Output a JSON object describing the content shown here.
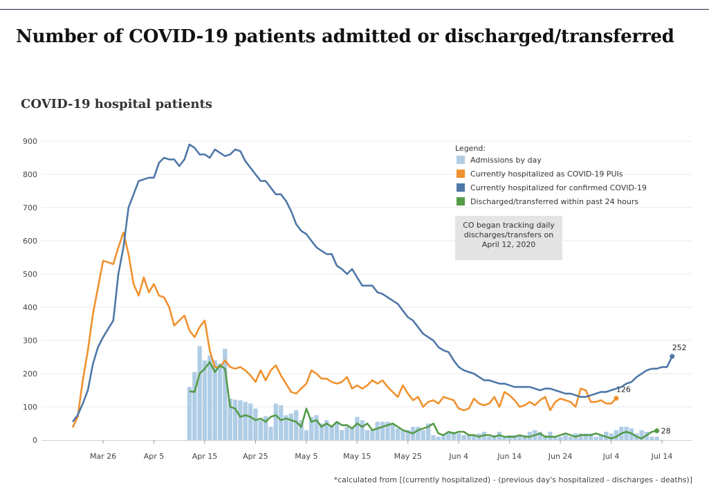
{
  "page": {
    "title": "Number of COVID-19 patients admitted or discharged/transferred"
  },
  "chart_data": {
    "type": "bar+line",
    "title": "COVID-19 hospital patients",
    "xlabel": "",
    "ylabel": "",
    "x_start": "2020-03-20",
    "x_end": "2020-07-14",
    "x_ticks": [
      {
        "date": "2020-03-26",
        "label": "Mar 26"
      },
      {
        "date": "2020-04-05",
        "label": "Apr 5"
      },
      {
        "date": "2020-04-15",
        "label": "Apr 15"
      },
      {
        "date": "2020-04-25",
        "label": "Apr 25"
      },
      {
        "date": "2020-05-05",
        "label": "May 5"
      },
      {
        "date": "2020-05-15",
        "label": "May 15"
      },
      {
        "date": "2020-05-25",
        "label": "May 25"
      },
      {
        "date": "2020-06-04",
        "label": "Jun 4"
      },
      {
        "date": "2020-06-14",
        "label": "Jun 14"
      },
      {
        "date": "2020-06-24",
        "label": "Jun 24"
      },
      {
        "date": "2020-07-04",
        "label": "Jul 4"
      },
      {
        "date": "2020-07-14",
        "label": "Jul 14"
      }
    ],
    "ylim": [
      0,
      900
    ],
    "y_ticks": [
      0,
      100,
      200,
      300,
      400,
      500,
      600,
      700,
      800,
      900
    ],
    "grid": true,
    "legend": {
      "title": "Legend:",
      "placement": "top-right",
      "items": [
        {
          "label": "Admissions by day",
          "color": "#b0cde6",
          "kind": "bar"
        },
        {
          "label": "Currently hospitalized as COVID-19 PUIs",
          "color": "#f0912d",
          "kind": "line"
        },
        {
          "label": "Currently hospitalized for confirmed COVID-19",
          "color": "#4e77a6",
          "kind": "line"
        },
        {
          "label": "Discharged/transferred within past 24 hours",
          "color": "#559b48",
          "kind": "line"
        }
      ]
    },
    "annotation": "CO began tracking daily discharges/transfers on April 12, 2020",
    "series": [
      {
        "name": "Admissions by day",
        "kind": "bar",
        "color": "#b0cde6",
        "start": "2020-04-12",
        "values": [
          160,
          205,
          283,
          240,
          255,
          240,
          230,
          275,
          125,
          122,
          120,
          115,
          110,
          95,
          60,
          72,
          40,
          110,
          105,
          75,
          80,
          90,
          60,
          30,
          70,
          75,
          50,
          60,
          45,
          55,
          30,
          40,
          35,
          70,
          60,
          30,
          30,
          55,
          55,
          55,
          50,
          35,
          30,
          30,
          40,
          40,
          30,
          50,
          15,
          10,
          15,
          25,
          25,
          20,
          15,
          15,
          15,
          20,
          25,
          10,
          15,
          25,
          10,
          15,
          15,
          15,
          15,
          25,
          30,
          25,
          15,
          25,
          10,
          10,
          15,
          10,
          20,
          20,
          20,
          20,
          10,
          15,
          25,
          20,
          30,
          40,
          40,
          35,
          20,
          30,
          25,
          10,
          10
        ]
      },
      {
        "name": "Currently hospitalized as COVID-19 PUIs",
        "kind": "line",
        "color": "#f0912d",
        "start": "2020-03-20",
        "end_label": "126",
        "values": [
          38,
          70,
          180,
          270,
          380,
          460,
          540,
          535,
          530,
          580,
          625,
          560,
          470,
          435,
          490,
          445,
          470,
          435,
          430,
          400,
          345,
          360,
          375,
          330,
          310,
          340,
          360,
          270,
          220,
          220,
          240,
          220,
          215,
          220,
          210,
          195,
          175,
          210,
          180,
          210,
          225,
          195,
          170,
          145,
          140,
          155,
          170,
          210,
          200,
          185,
          185,
          175,
          170,
          175,
          190,
          155,
          165,
          155,
          165,
          180,
          170,
          180,
          160,
          145,
          130,
          165,
          140,
          120,
          130,
          100,
          115,
          120,
          110,
          130,
          125,
          120,
          95,
          90,
          95,
          125,
          110,
          105,
          110,
          130,
          100,
          145,
          135,
          120,
          100,
          105,
          115,
          105,
          120,
          130,
          90,
          115,
          125,
          120,
          115,
          100,
          155,
          150,
          115,
          115,
          120,
          110,
          110,
          126
        ]
      },
      {
        "name": "Currently hospitalized for confirmed COVID-19",
        "kind": "line",
        "color": "#4e77a6",
        "start": "2020-03-20",
        "end_label": "252",
        "values": [
          55,
          75,
          110,
          150,
          230,
          280,
          310,
          335,
          360,
          500,
          580,
          700,
          740,
          780,
          785,
          790,
          790,
          835,
          850,
          845,
          845,
          825,
          845,
          890,
          880,
          860,
          860,
          850,
          875,
          865,
          855,
          860,
          875,
          870,
          840,
          820,
          800,
          780,
          780,
          760,
          740,
          740,
          720,
          690,
          650,
          630,
          620,
          600,
          580,
          570,
          560,
          560,
          525,
          515,
          500,
          515,
          490,
          465,
          465,
          465,
          445,
          440,
          430,
          420,
          410,
          390,
          370,
          360,
          340,
          320,
          310,
          300,
          280,
          270,
          265,
          240,
          220,
          210,
          205,
          200,
          190,
          180,
          180,
          175,
          170,
          170,
          165,
          160,
          160,
          160,
          160,
          155,
          150,
          155,
          155,
          150,
          145,
          140,
          140,
          135,
          130,
          130,
          135,
          140,
          145,
          145,
          150,
          155,
          160,
          170,
          175,
          190,
          200,
          210,
          215,
          215,
          220,
          220,
          252
        ]
      },
      {
        "name": "Discharged/transferred within past 24 hours",
        "kind": "line",
        "color": "#559b48",
        "start": "2020-04-12",
        "end_label": "28",
        "values": [
          147,
          145,
          200,
          215,
          235,
          205,
          225,
          215,
          100,
          95,
          70,
          75,
          70,
          60,
          65,
          55,
          70,
          75,
          60,
          65,
          60,
          55,
          40,
          95,
          55,
          60,
          40,
          50,
          40,
          55,
          45,
          45,
          35,
          50,
          40,
          50,
          30,
          35,
          40,
          45,
          50,
          40,
          30,
          25,
          20,
          30,
          35,
          40,
          50,
          20,
          15,
          25,
          20,
          25,
          25,
          15,
          15,
          10,
          15,
          15,
          10,
          15,
          10,
          10,
          10,
          15,
          10,
          10,
          15,
          20,
          10,
          10,
          10,
          15,
          20,
          15,
          10,
          15,
          15,
          15,
          20,
          15,
          10,
          5,
          10,
          20,
          25,
          20,
          10,
          5,
          15,
          25,
          28
        ]
      }
    ]
  },
  "footnote": "*calculated from [(currently hospitalized) - (previous day's hospitalized - discharges - deaths)]"
}
